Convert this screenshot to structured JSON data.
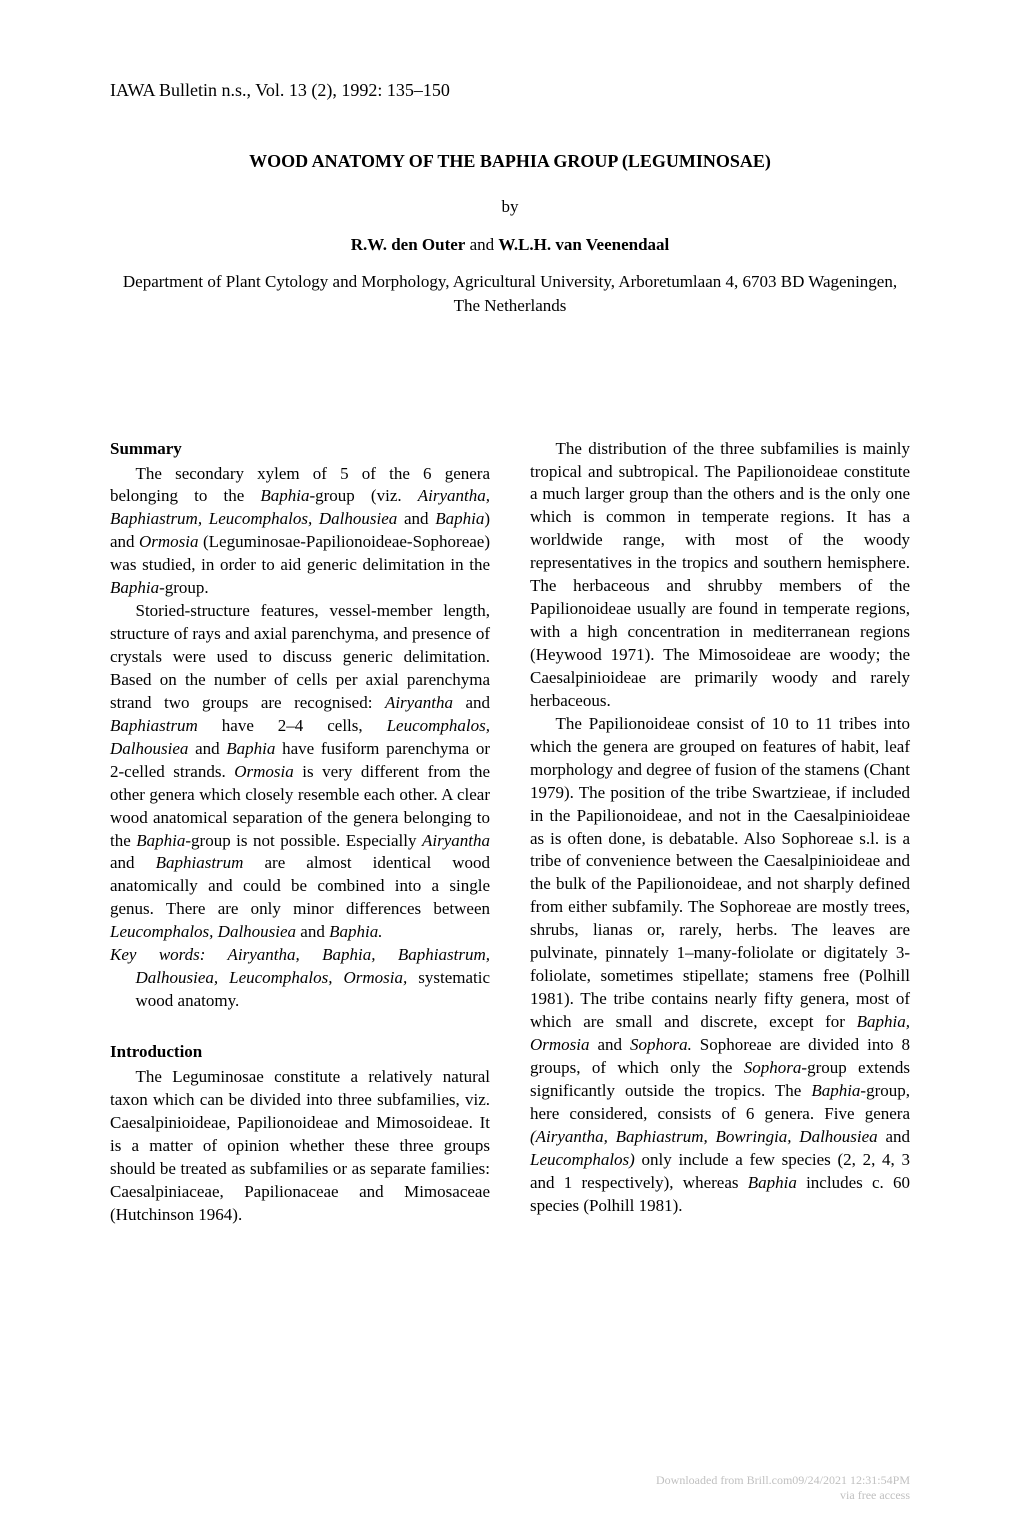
{
  "header": "IAWA Bulletin n.s., Vol. 13 (2), 1992: 135–150",
  "title": "WOOD ANATOMY OF THE BAPHIA GROUP (LEGUMINOSAE)",
  "by": "by",
  "authors_html": "<strong>R.W. den Outer</strong> and <strong>W.L.H. van Veenendaal</strong>",
  "affiliation": "Department of Plant Cytology and Morphology, Agricultural University, Arboretumlaan 4, 6703 BD Wageningen, The Netherlands",
  "left": {
    "summary_heading": "Summary",
    "summary_p1_html": "The secondary xylem of 5 of the 6 genera belonging to the <span class=\"italic\">Baphia</span>-group (viz. <span class=\"italic\">Airyantha, Baphiastrum, Leucomphalos, Dalhousiea</span> and <span class=\"italic\">Baphia</span>) and <span class=\"italic\">Ormosia</span> (Leguminosae-Papilionoideae-Sophoreae) was studied, in order to aid generic delimitation in the <span class=\"italic\">Baphia</span>-group.",
    "summary_p2_html": "Storied-structure features, vessel-member length, structure of rays and axial parenchyma, and presence of crystals were used to discuss generic delimitation. Based on the number of cells per axial parenchyma strand two groups are recognised: <span class=\"italic\">Airyantha</span> and <span class=\"italic\">Baphiastrum</span> have 2–4 cells, <span class=\"italic\">Leucomphalos, Dalhousiea</span> and <span class=\"italic\">Baphia</span> have fusiform parenchyma or 2-celled strands. <span class=\"italic\">Ormosia</span> is very different from the other genera which closely resemble each other. A clear wood anatomical separation of the genera belonging to the <span class=\"italic\">Baphia</span>-group is not possible. Especially <span class=\"italic\">Airyantha</span> and <span class=\"italic\">Baphiastrum</span> are almost identical wood anatomically and could be combined into a single genus. There are only minor differences between <span class=\"italic\">Leucomphalos, Dalhousiea</span> and <span class=\"italic\">Baphia.</span>",
    "keywords_html": "<span class=\"italic\">Key words: Airyantha, Baphia, Baphiastrum, Dalhousiea, Leucomphalos, Ormosia,</span> systematic wood anatomy.",
    "intro_heading": "Introduction",
    "intro_p1_html": "The Leguminosae constitute a relatively natural taxon which can be divided into three subfamilies, viz. Caesalpinioideae, Papilionoideae and Mimosoideae. It is a matter of opinion whether these three groups should be treated as subfamilies or as separate families: Caesalpiniaceae, Papilionaceae and Mimosaceae (Hutchinson 1964)."
  },
  "right": {
    "p1_html": "The distribution of the three subfamilies is mainly tropical and subtropical. The Papilionoideae constitute a much larger group than the others and is the only one which is common in temperate regions. It has a worldwide range, with most of the woody representatives in the tropics and southern hemisphere. The herbaceous and shrubby members of the Papilionoideae usually are found in temperate regions, with a high concentration in mediterranean regions (Heywood 1971). The Mimosoideae are woody; the Caesalpinioideae are primarily woody and rarely herbaceous.",
    "p2_html": "The Papilionoideae consist of 10 to 11 tribes into which the genera are grouped on features of habit, leaf morphology and degree of fusion of the stamens (Chant 1979). The position of the tribe Swartzieae, if included in the Papilionoideae, and not in the Caesalpinioideae as is often done, is debatable. Also Sophoreae s.l. is a tribe of convenience between the Caesalpinioideae and the bulk of the Papilionoideae, and not sharply defined from either subfamily. The Sophoreae are mostly trees, shrubs, lianas or, rarely, herbs. The leaves are pulvinate, pinnately 1–many-foliolate or digitately 3-foliolate, sometimes stipellate; stamens free (Polhill 1981). The tribe contains nearly fifty genera, most of which are small and discrete, except for <span class=\"italic\">Baphia, Ormosia</span> and <span class=\"italic\">Sophora.</span> Sophoreae are divided into 8 groups, of which only the <span class=\"italic\">Sophora</span>-group extends significantly outside the tropics. The <span class=\"italic\">Baphia</span>-group, here considered, consists of 6 genera. Five genera <span class=\"italic\">(Airyantha, Baphiastrum, Bowringia, Dalhousiea</span> and <span class=\"italic\">Leucomphalos)</span> only include a few species (2, 2, 4, 3 and 1 respectively), whereas <span class=\"italic\">Baphia</span> includes c. 60 species (Polhill 1981)."
  },
  "footer": {
    "line1": "Downloaded from Brill.com09/24/2021 12:31:54PM",
    "line2": "via free access"
  }
}
